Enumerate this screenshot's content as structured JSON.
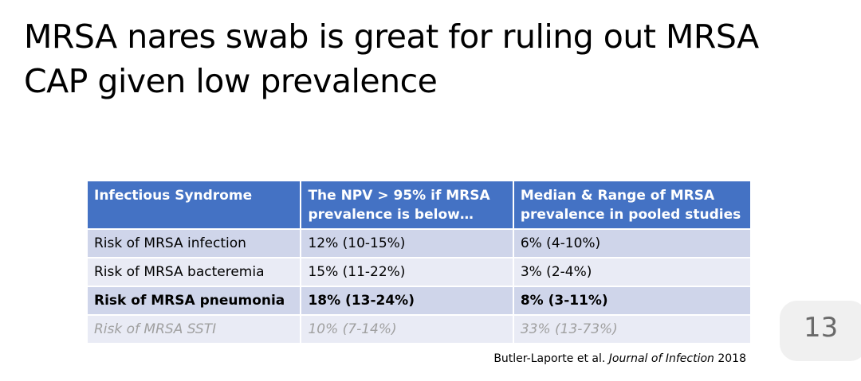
{
  "slide": {
    "title_line1": "MRSA nares swab is great for ruling out MRSA",
    "title_line2": "CAP given low prevalence",
    "page_number": "13"
  },
  "table": {
    "headers": [
      "Infectious Syndrome",
      "The NPV > 95% if MRSA prevalence is below…",
      "Median & Range of MRSA prevalence in pooled studies"
    ],
    "rows": [
      [
        "Risk of MRSA infection",
        "12% (10-15%)",
        "6% (4-10%)"
      ],
      [
        "Risk of MRSA bacteremia",
        "15% (11-22%)",
        "3% (2-4%)"
      ],
      [
        "Risk of MRSA pneumonia",
        "18% (13-24%)",
        "8% (3-11%)"
      ],
      [
        "Risk of MRSA SSTI",
        "10% (7-14%)",
        "33% (13-73%)"
      ]
    ]
  },
  "citation": {
    "authors": "Butler-Laporte et al.",
    "journal": "Journal of Infection",
    "year": "2018"
  }
}
